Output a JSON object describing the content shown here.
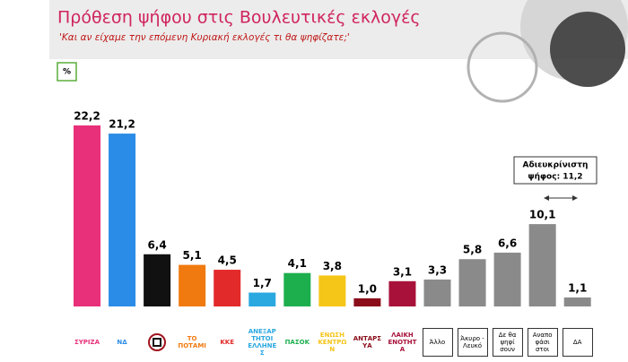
{
  "chart_data": {
    "type": "bar",
    "title": "Πρόθεση ψήφου στις Βουλευτικές εκλογές",
    "subtitle": "'Και αν είχαμε την επόμενη Κυριακή εκλογές τι θα ψηφίζατε;'",
    "unit_label": "%",
    "annotation": [
      "Αδιευκρίνιστη",
      "ψήφος: 11,2"
    ],
    "categories": [
      "ΣΥΡΙΖΑ",
      "ΝΔ",
      null,
      "ΤΟ ΠΟΤΑΜΙ",
      "ΚΚΕ",
      "ΑΝΕΞΑΡΤΗΤΟΙ ΕΛΛΗΝΕΣ",
      "ΠΑΣΟΚ",
      "ΕΝΩΣΗ ΚΕΝΤΡΩΝ",
      "ΑΝΤΑΡΣΥΑ",
      "ΛΑΙΚΗ ΕΝΟΤΗΤΑ",
      "Άλλο",
      "Άκυρο - Λευκό",
      "Δε θα ψηφί σουν",
      "Αναπο φάσι στοι",
      "ΔΑ"
    ],
    "values": [
      22.2,
      21.2,
      6.4,
      5.1,
      4.5,
      1.7,
      4.1,
      3.8,
      1.0,
      3.1,
      3.3,
      5.8,
      6.6,
      10.1,
      1.1
    ],
    "value_labels": [
      "22,2",
      "21,2",
      "6,4",
      "5,1",
      "4,5",
      "1,7",
      "4,1",
      "3,8",
      "1,0",
      "3,1",
      "3,3",
      "5,8",
      "6,6",
      "10,1",
      "1,1"
    ],
    "colors": [
      "#e8307a",
      "#2a8ce6",
      "#111111",
      "#f07a10",
      "#e32a2a",
      "#2aa8e0",
      "#1daf4e",
      "#f5c518",
      "#8b0d1a",
      "#a8123a",
      "#8a8a8a",
      "#8a8a8a",
      "#8a8a8a",
      "#8a8a8a",
      "#8a8a8a"
    ]
  }
}
